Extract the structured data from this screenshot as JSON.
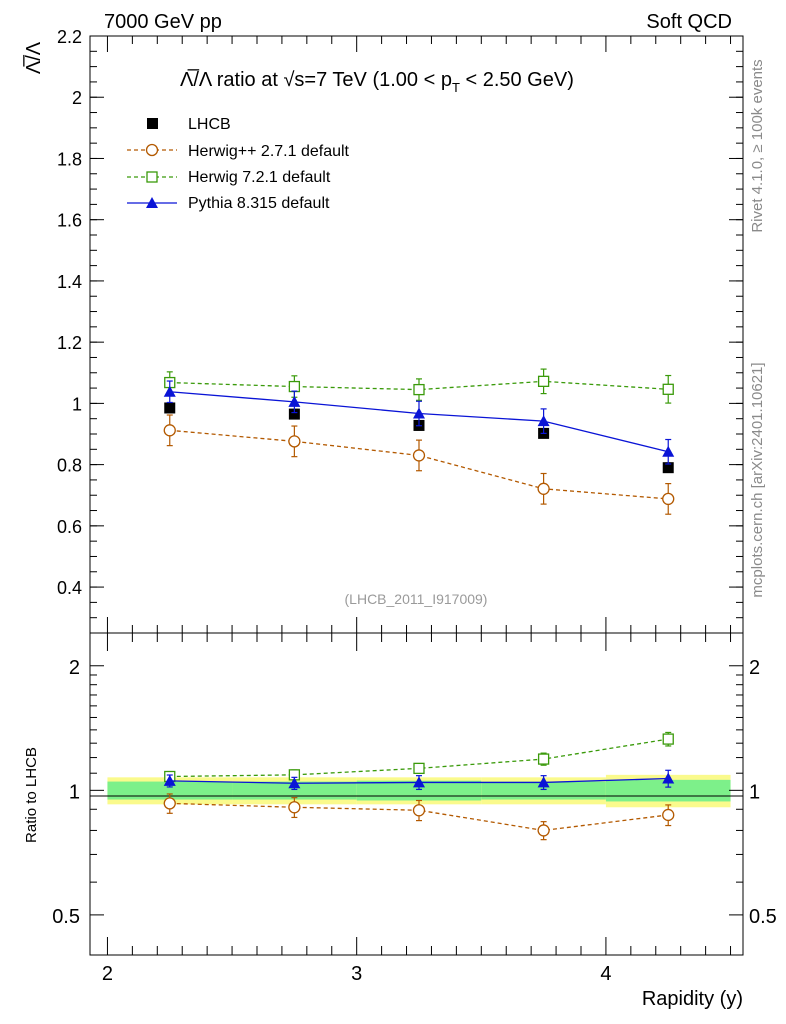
{
  "header": {
    "left": "7000 GeV pp",
    "right": "Soft QCD"
  },
  "side_labels": {
    "rivet": "Rivet 4.1.0, ≥ 100k events",
    "mcplots": "mcplots.cern.ch [arXiv:2401.10621]"
  },
  "watermark": "(LHCB_2011_I917009)",
  "colors": {
    "data": "#000000",
    "herwigpp": "#b35900",
    "herwig7": "#3a9a0a",
    "pythia": "#0a14d6",
    "band_inner": "#7df08a",
    "band_outer": "#fafa8c"
  },
  "chart_data": [
    {
      "type": "scatter",
      "panel": "main",
      "title_parts": {
        "ratio": "Λ̅/Λ ratio at ",
        "sqrt": "√",
        "s_energy": "s=7 TeV (1.00 < p",
        "sub": "T",
        "tail": " < 2.50 GeV)"
      },
      "ylabel": "Λ̅/Λ",
      "xlabel": "",
      "xlim": [
        1.93,
        4.55
      ],
      "ylim": [
        0.25,
        2.2
      ],
      "yticks": [
        0.4,
        0.6,
        0.8,
        1.0,
        1.2,
        1.4,
        1.6,
        1.8,
        2.0,
        2.2
      ],
      "ytick_labels": [
        "0.4",
        "0.6",
        "0.8",
        "1",
        "1.2",
        "1.4",
        "1.6",
        "1.8",
        "2",
        "2.2"
      ],
      "x": [
        2.25,
        2.75,
        3.25,
        3.75,
        4.25
      ],
      "series": [
        {
          "name": "LHCB",
          "key": "data",
          "style": "square-filled",
          "values": [
            0.985,
            0.965,
            0.928,
            0.902,
            0.79
          ],
          "errors": [
            0.015,
            0.015,
            0.015,
            0.012,
            0.015
          ]
        },
        {
          "name": "Herwig++ 2.7.1 default",
          "key": "herwigpp",
          "style": "circle-open-dashed",
          "values": [
            0.912,
            0.876,
            0.83,
            0.721,
            0.688
          ],
          "errors": [
            0.05,
            0.05,
            0.05,
            0.05,
            0.05
          ]
        },
        {
          "name": "Herwig 7.2.1 default",
          "key": "herwig7",
          "style": "square-open-dashed",
          "values": [
            1.068,
            1.055,
            1.045,
            1.072,
            1.046
          ],
          "errors": [
            0.035,
            0.035,
            0.035,
            0.04,
            0.045
          ]
        },
        {
          "name": "Pythia 8.315 default",
          "key": "pythia",
          "style": "triangle-filled-solid",
          "values": [
            1.038,
            1.005,
            0.967,
            0.942,
            0.842
          ],
          "errors": [
            0.035,
            0.035,
            0.04,
            0.04,
            0.04
          ]
        }
      ]
    },
    {
      "type": "scatter",
      "panel": "ratio",
      "ylabel": "Ratio to LHCB",
      "xlabel": "Rapidity (y)",
      "xlim": [
        1.93,
        4.55
      ],
      "ylim": [
        0.4,
        2.4
      ],
      "yscale": "log",
      "yticks": [
        0.5,
        1,
        2
      ],
      "ytick_labels": [
        "0.5",
        "1",
        "2"
      ],
      "xticks": [
        2,
        3,
        4
      ],
      "xtick_labels": [
        "2",
        "3",
        "4"
      ],
      "x": [
        2.25,
        2.75,
        3.25,
        3.75,
        4.25
      ],
      "bands": {
        "edges": [
          2.0,
          2.5,
          3.0,
          3.5,
          4.0,
          4.5
        ],
        "inner_half": [
          0.05,
          0.05,
          0.055,
          0.05,
          0.06
        ],
        "outer_half": [
          0.075,
          0.075,
          0.075,
          0.075,
          0.09
        ]
      },
      "series": [
        {
          "name": "Herwig++ 2.7.1 default",
          "key": "herwigpp",
          "style": "circle-open-dashed",
          "values": [
            0.93,
            0.91,
            0.895,
            0.8,
            0.872
          ],
          "errors": [
            0.05,
            0.05,
            0.05,
            0.04,
            0.05
          ]
        },
        {
          "name": "Herwig 7.2.1 default",
          "key": "herwig7",
          "style": "square-open-dashed",
          "values": [
            1.08,
            1.09,
            1.13,
            1.19,
            1.33
          ],
          "errors": [
            0.03,
            0.03,
            0.03,
            0.04,
            0.05
          ]
        },
        {
          "name": "Pythia 8.315 default",
          "key": "pythia",
          "style": "triangle-filled-solid",
          "values": [
            1.054,
            1.04,
            1.045,
            1.045,
            1.068
          ],
          "errors": [
            0.035,
            0.035,
            0.04,
            0.04,
            0.05
          ]
        }
      ]
    }
  ]
}
